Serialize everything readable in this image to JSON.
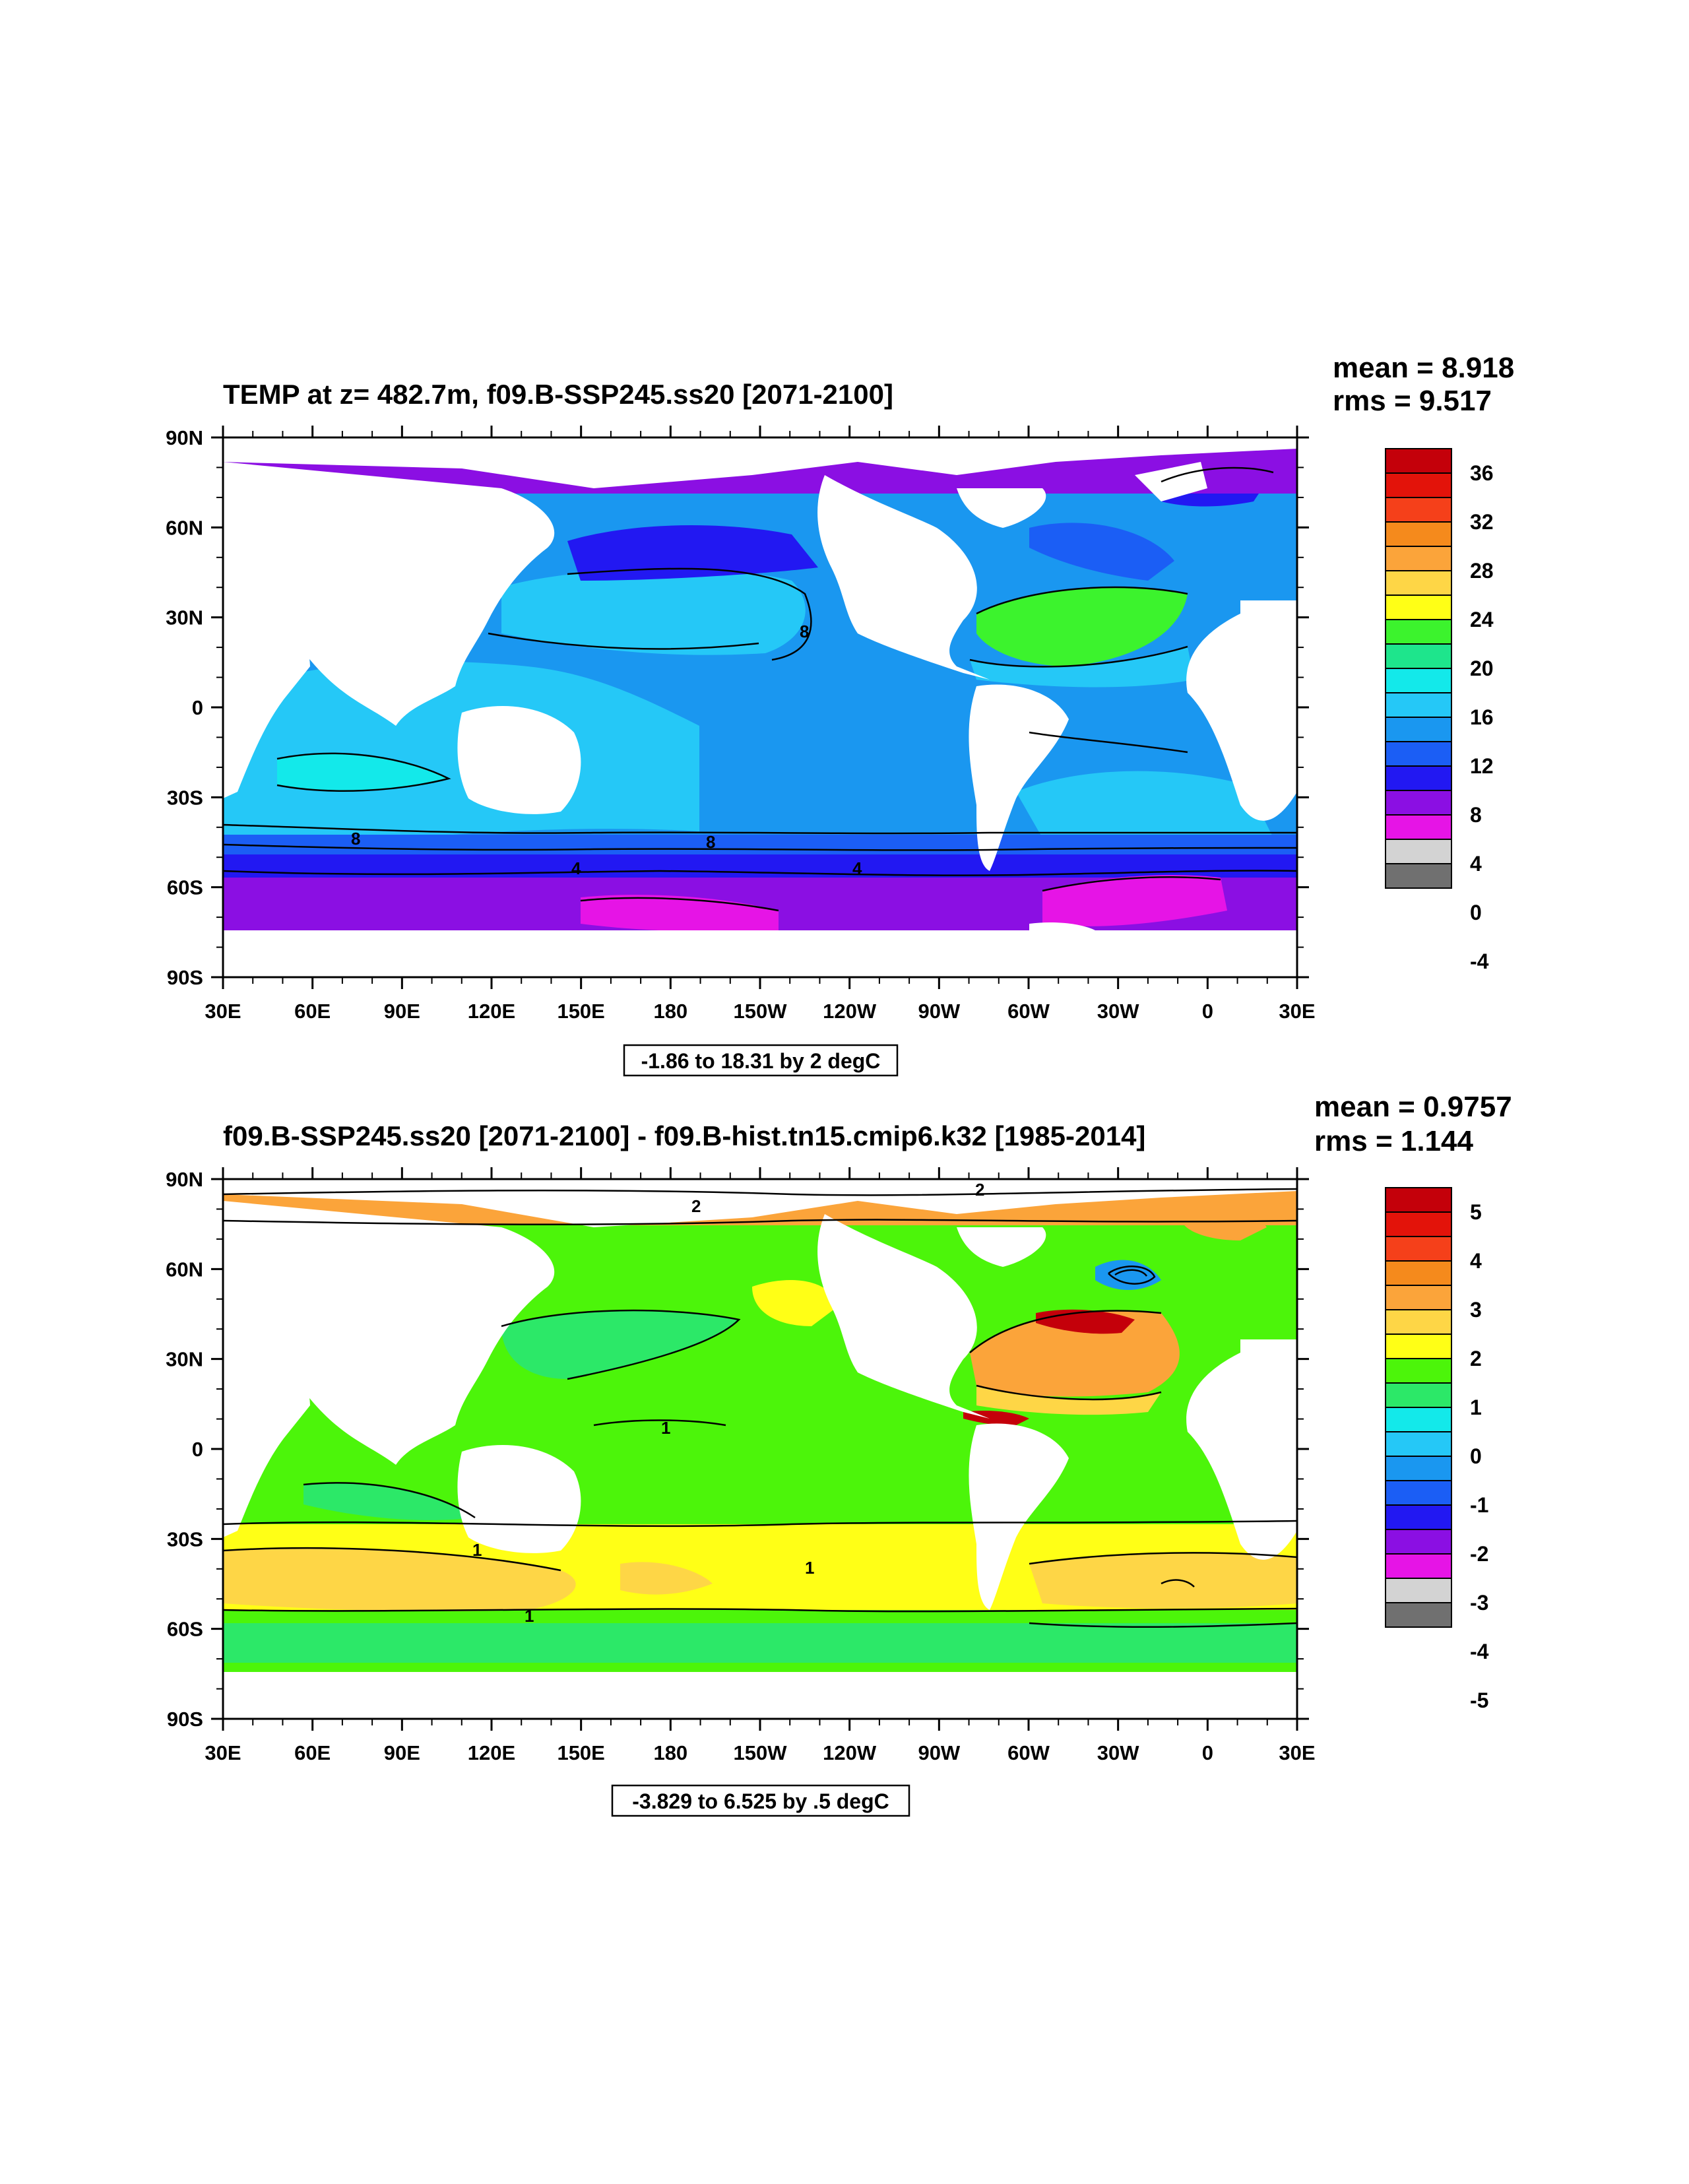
{
  "panels": [
    {
      "title": "TEMP at z= 482.7m, f09.B-SSP245.ss20 [2071-2100]",
      "mean": "mean = 8.918",
      "rms": "rms = 9.517",
      "info": "-1.86 to 18.31 by 2 degC",
      "colorbar": {
        "labels": [
          "36",
          "32",
          "28",
          "24",
          "20",
          "16",
          "12",
          "8",
          "4",
          "0",
          "-4"
        ],
        "colors": [
          "#c4000a",
          "#e3130a",
          "#f5401a",
          "#f58a1c",
          "#fba43a",
          "#fed646",
          "#ffff16",
          "#3cf32d",
          "#1ee58c",
          "#13e9ea",
          "#25c8f7",
          "#1a97f0",
          "#1b5ef5",
          "#2218f2",
          "#8b0fe3",
          "#e614e6",
          "#d3d3d3",
          "#707070"
        ]
      },
      "contour_labels": [
        "8",
        "8",
        "8",
        "4",
        "4"
      ]
    },
    {
      "title": "f09.B-SSP245.ss20 [2071-2100] - f09.B-hist.tn15.cmip6.k32 [1985-2014]",
      "mean": "mean = 0.9757",
      "rms": "rms = 1.144",
      "info": "-3.829 to 6.525 by .5 degC",
      "colorbar": {
        "labels": [
          "5",
          "4",
          "3",
          "2",
          "1",
          "0",
          "-1",
          "-2",
          "-3",
          "-4",
          "-5"
        ],
        "colors": [
          "#c4000a",
          "#e3130a",
          "#f5401a",
          "#f58a1c",
          "#fba43a",
          "#fed646",
          "#ffff16",
          "#4cf50a",
          "#2ce868",
          "#13e9ea",
          "#25c8f7",
          "#1a97f0",
          "#1b5ef5",
          "#2218f2",
          "#8b0fe3",
          "#e614e6",
          "#d3d3d3",
          "#707070"
        ]
      },
      "contour_labels": [
        "2",
        "2",
        "1",
        "1",
        "1",
        "1"
      ]
    }
  ],
  "axes": {
    "lat_labels": [
      "90N",
      "60N",
      "30N",
      "0",
      "30S",
      "60S",
      "90S"
    ],
    "lon_labels": [
      "30E",
      "60E",
      "90E",
      "120E",
      "150E",
      "180",
      "150W",
      "120W",
      "90W",
      "60W",
      "30W",
      "0",
      "30E"
    ]
  },
  "field_colors": {
    "panel1": {
      "arctic": "#8b0fe3",
      "north_pacific_cold": "#2218f2",
      "mid_blue": "#1a97f0",
      "light_blue": "#25c8f7",
      "cyan": "#13e9ea",
      "green": "#3cf32d",
      "dark_blue": "#1b5ef5",
      "southern_purple": "#8b0fe3",
      "magenta": "#e614e6",
      "gray": "#d3d3d3"
    },
    "panel2": {
      "green": "#4cf50a",
      "darkgreen": "#2ce868",
      "yellow": "#ffff16",
      "orange": "#fed646",
      "deeporange": "#fba43a",
      "red": "#c4000a",
      "blue": "#1a97f0"
    }
  }
}
